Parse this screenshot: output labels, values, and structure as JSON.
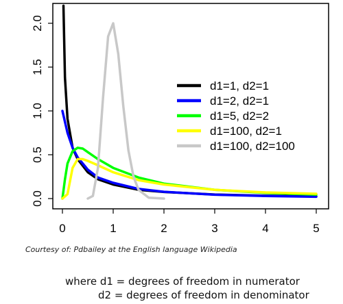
{
  "chart_data": {
    "type": "line",
    "title": "",
    "xlabel": "",
    "ylabel": "",
    "xlim": [
      0,
      5
    ],
    "ylim": [
      0,
      2.0
    ],
    "x_ticks": [
      "0",
      "1",
      "2",
      "3",
      "4",
      "5"
    ],
    "y_ticks": [
      "0.0",
      "0.5",
      "1.0",
      "1.5",
      "2.0"
    ],
    "grid": false,
    "legend_position": "right",
    "series": [
      {
        "name": "d1=1, d2=1",
        "color": "#000000",
        "x": [
          0.02,
          0.05,
          0.1,
          0.2,
          0.3,
          0.5,
          0.7,
          1.0,
          1.5,
          2.0,
          3.0,
          4.0,
          5.0
        ],
        "y": [
          2.2,
          1.38,
          0.91,
          0.58,
          0.45,
          0.3,
          0.22,
          0.16,
          0.1,
          0.075,
          0.046,
          0.032,
          0.024
        ]
      },
      {
        "name": "d1=2, d2=1",
        "color": "#0000ff",
        "x": [
          0.0,
          0.1,
          0.2,
          0.3,
          0.5,
          0.7,
          1.0,
          1.5,
          2.0,
          3.0,
          4.0,
          5.0
        ],
        "y": [
          1.0,
          0.75,
          0.58,
          0.47,
          0.33,
          0.24,
          0.18,
          0.11,
          0.077,
          0.044,
          0.029,
          0.02
        ]
      },
      {
        "name": "d1=5, d2=2",
        "color": "#00ff00",
        "x": [
          0.0,
          0.05,
          0.1,
          0.2,
          0.3,
          0.4,
          0.5,
          0.7,
          1.0,
          1.5,
          2.0,
          3.0,
          4.0,
          5.0
        ],
        "y": [
          0.0,
          0.22,
          0.4,
          0.54,
          0.58,
          0.57,
          0.53,
          0.45,
          0.35,
          0.24,
          0.17,
          0.1,
          0.065,
          0.045
        ]
      },
      {
        "name": "d1=100, d2=1",
        "color": "#ffff00",
        "x": [
          0.0,
          0.1,
          0.2,
          0.3,
          0.4,
          0.5,
          0.7,
          1.0,
          1.5,
          2.0,
          3.0,
          4.0,
          5.0
        ],
        "y": [
          0.0,
          0.05,
          0.35,
          0.45,
          0.45,
          0.43,
          0.38,
          0.3,
          0.21,
          0.16,
          0.1,
          0.07,
          0.055
        ]
      },
      {
        "name": "d1=100, d2=100",
        "color": "#c8c8c8",
        "x": [
          0.5,
          0.6,
          0.7,
          0.8,
          0.9,
          1.0,
          1.1,
          1.2,
          1.3,
          1.4,
          1.5,
          1.7,
          2.0
        ],
        "y": [
          0.0,
          0.03,
          0.35,
          1.15,
          1.85,
          2.0,
          1.65,
          1.05,
          0.55,
          0.25,
          0.1,
          0.01,
          0.0
        ]
      }
    ]
  },
  "caption": "Courtesy of: Pdbailey at the English language Wikipedia",
  "notes": [
    "where d1 = degrees of freedom in numerator",
    "d2 = degrees of freedom in denominator"
  ]
}
